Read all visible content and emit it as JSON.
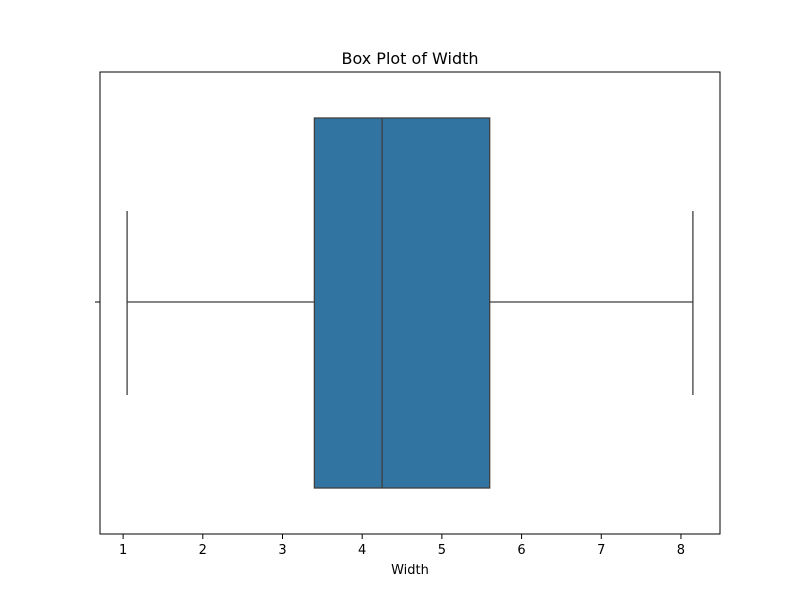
{
  "chart_data": {
    "type": "box",
    "title": "Box Plot of Width",
    "xlabel": "Width",
    "ylabel": "",
    "xlim": [
      0.71,
      8.49
    ],
    "xticks": [
      1,
      2,
      3,
      4,
      5,
      6,
      7,
      8
    ],
    "xtick_labels": [
      "1",
      "2",
      "3",
      "4",
      "5",
      "6",
      "7",
      "8"
    ],
    "grid": false,
    "box": {
      "whisker_low": 1.05,
      "q1": 3.4,
      "median": 4.25,
      "q3": 5.6,
      "whisker_high": 8.15
    },
    "colors": {
      "box_fill": "#3274a1",
      "line": "#3f3f3f"
    }
  }
}
